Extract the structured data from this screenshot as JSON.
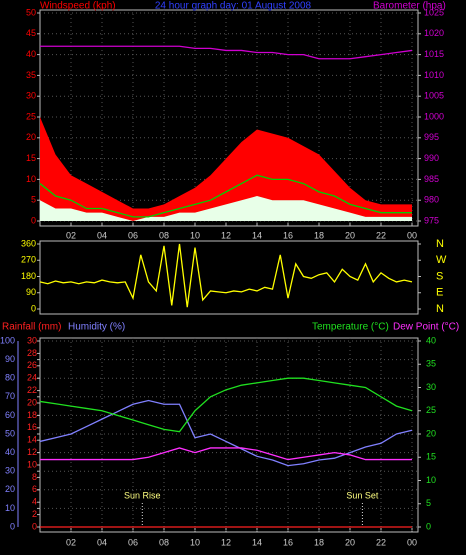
{
  "chart_data": [
    {
      "type": "area",
      "title": "24 hour graph day: 01 August 2008",
      "ylabel": "Windspeed (kph)",
      "y2label": "Barometer (hpa)",
      "x": [
        0,
        1,
        2,
        3,
        4,
        5,
        6,
        7,
        8,
        9,
        10,
        11,
        12,
        13,
        14,
        15,
        16,
        17,
        18,
        19,
        20,
        21,
        22,
        23,
        24
      ],
      "xlim": [
        0,
        24
      ],
      "xticks": [
        {
          "value": 2,
          "label": "02"
        },
        {
          "value": 4,
          "label": "04"
        },
        {
          "value": 6,
          "label": "06"
        },
        {
          "value": 8,
          "label": "08"
        },
        10,
        12,
        14,
        16,
        18,
        20,
        22,
        {
          "value": 24,
          "label": "00"
        }
      ],
      "ylim": [
        0,
        50
      ],
      "yticks": [
        0,
        5,
        10,
        15,
        20,
        25,
        30,
        35,
        40,
        45,
        50
      ],
      "y2lim": [
        975,
        1025
      ],
      "y2ticks": [
        975,
        980,
        985,
        990,
        995,
        1000,
        1005,
        1010,
        1015,
        1020,
        1025
      ],
      "grid": true,
      "series": [
        {
          "type": "area",
          "color": "#ff0000",
          "values": [
            25,
            16,
            11,
            9,
            7,
            5,
            3,
            3,
            4,
            6,
            8,
            11,
            15,
            19,
            22,
            21,
            20,
            18,
            16,
            12,
            8,
            5,
            4,
            4,
            4
          ]
        },
        {
          "type": "area",
          "color": "#e8ffe8",
          "values": [
            5,
            3,
            3,
            2,
            2,
            1,
            0,
            1,
            1,
            2,
            2,
            3,
            4,
            5,
            6,
            5,
            5,
            5,
            4,
            3,
            2,
            1,
            1,
            1,
            1
          ]
        },
        {
          "type": "line",
          "color": "#00d000",
          "values": [
            9,
            6,
            5,
            3,
            3,
            2,
            1,
            1,
            2,
            3,
            4,
            5,
            7,
            9,
            11,
            10,
            10,
            9,
            7,
            6,
            4,
            3,
            2,
            2,
            2
          ]
        },
        {
          "type": "line",
          "color": "#d000d0",
          "axis": "y2",
          "values": [
            1017,
            1017,
            1017,
            1017,
            1017,
            1017,
            1017,
            1017,
            1017,
            1017,
            1016.5,
            1016.5,
            1016,
            1016,
            1015.5,
            1015.5,
            1015,
            1015,
            1014,
            1014,
            1014,
            1014.5,
            1015,
            1015.5,
            1016
          ]
        }
      ]
    },
    {
      "type": "line",
      "x": [
        0,
        0.5,
        1,
        1.5,
        2,
        2.5,
        3,
        3.5,
        4,
        4.5,
        5,
        5.5,
        6,
        6.5,
        7,
        7.5,
        8,
        8.5,
        9,
        9.5,
        10,
        10.5,
        11,
        11.5,
        12,
        12.5,
        13,
        13.5,
        14,
        14.5,
        15,
        15.5,
        16,
        16.5,
        17,
        17.5,
        18,
        18.5,
        19,
        19.5,
        20,
        20.5,
        21,
        21.5,
        22,
        22.5,
        23,
        23.5,
        24
      ],
      "xlim": [
        0,
        24
      ],
      "ylim": [
        0,
        360
      ],
      "yticks": [
        0,
        90,
        180,
        270,
        360
      ],
      "y2lim": [
        0,
        360
      ],
      "y2ticks": [
        {
          "value": 0,
          "label": "N"
        },
        {
          "value": 90,
          "label": "E"
        },
        {
          "value": 180,
          "label": "S"
        },
        {
          "value": 270,
          "label": "W"
        },
        {
          "value": 360,
          "label": "N"
        }
      ],
      "series": [
        {
          "type": "line",
          "color": "#ffff00",
          "values": [
            150,
            140,
            155,
            145,
            150,
            140,
            150,
            145,
            160,
            150,
            145,
            150,
            60,
            300,
            150,
            100,
            350,
            20,
            360,
            10,
            340,
            50,
            100,
            95,
            90,
            100,
            95,
            110,
            100,
            120,
            110,
            300,
            60,
            250,
            180,
            170,
            190,
            200,
            150,
            220,
            180,
            160,
            250,
            150,
            200,
            170,
            150,
            160,
            150
          ]
        }
      ]
    },
    {
      "type": "line",
      "x": [
        0,
        1,
        2,
        3,
        4,
        5,
        6,
        7,
        8,
        9,
        10,
        11,
        12,
        13,
        14,
        15,
        16,
        17,
        18,
        19,
        20,
        21,
        22,
        23,
        24
      ],
      "xlim": [
        0,
        24
      ],
      "xticks": [
        {
          "value": 2,
          "label": "02"
        },
        {
          "value": 4,
          "label": "04"
        },
        {
          "value": 6,
          "label": "06"
        },
        {
          "value": 8,
          "label": "08"
        },
        10,
        12,
        14,
        16,
        18,
        20,
        22,
        {
          "value": 24,
          "label": "00"
        }
      ],
      "ylim": [
        0,
        100
      ],
      "yticks": [
        0,
        10,
        20,
        30,
        40,
        50,
        60,
        70,
        80,
        90,
        100
      ],
      "y2lim": [
        0,
        40
      ],
      "y2ticks": [
        0,
        5,
        10,
        15,
        20,
        25,
        30,
        35,
        40
      ],
      "y3lim": [
        0,
        30
      ],
      "y3ticks": [
        0,
        2,
        4,
        6,
        8,
        10,
        12,
        14,
        16,
        18,
        20,
        22,
        24,
        26,
        28,
        30
      ],
      "grid": true,
      "annotations": [
        {
          "text": "Sun Rise",
          "x": 6.6
        },
        {
          "text": "Sun Set",
          "x": 20.8
        }
      ],
      "series": [
        {
          "name": "Rainfall (mm)",
          "type": "line",
          "color": "#ff2020",
          "axis": "y3",
          "values": [
            0,
            0,
            0,
            0,
            0,
            0,
            0,
            0,
            0,
            0,
            0,
            0,
            0,
            0,
            0,
            0,
            0,
            0,
            0,
            0,
            0,
            0,
            0,
            0,
            0
          ]
        },
        {
          "name": "Humidity (%)",
          "type": "line",
          "color": "#8080ff",
          "values": [
            46,
            48,
            50,
            54,
            58,
            62,
            66,
            68,
            66,
            66,
            48,
            50,
            46,
            42,
            38,
            36,
            33,
            34,
            36,
            37,
            40,
            43,
            45,
            50,
            52
          ]
        },
        {
          "name": "Temperature (°C)",
          "type": "line",
          "color": "#20e020",
          "axis": "y2",
          "values": [
            27,
            26.5,
            26,
            25.5,
            25,
            24,
            23,
            22,
            21,
            20.5,
            25,
            28,
            29.5,
            30.5,
            31,
            31.5,
            32,
            32,
            31.5,
            31,
            30.5,
            30,
            28,
            26,
            25
          ]
        },
        {
          "name": "Dew Point (°C)",
          "type": "line",
          "color": "#ff30ff",
          "axis": "y2",
          "values": [
            14.5,
            14.5,
            14.5,
            14.5,
            14.5,
            14.5,
            14.5,
            15,
            16,
            17,
            16,
            17,
            17,
            17,
            16.5,
            15.5,
            14.5,
            15,
            15.5,
            16,
            15.5,
            14.5,
            14.5,
            14.5,
            14.5
          ]
        }
      ]
    }
  ]
}
